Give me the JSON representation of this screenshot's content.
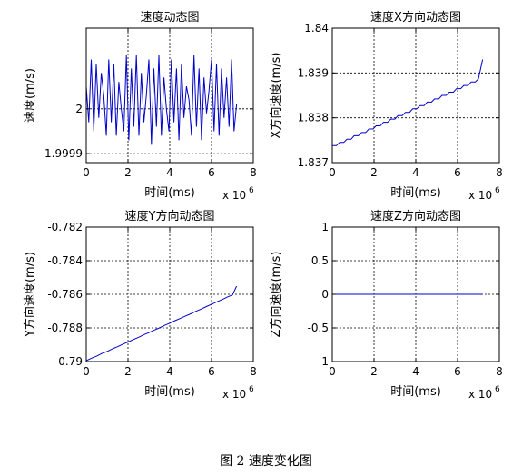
{
  "caption": "图 2  速度变化图",
  "chart_data": [
    {
      "id": "speed",
      "type": "line",
      "title": "速度动态图",
      "xlabel": "时间(ms)",
      "ylabel": "速度(m/s)",
      "x_exponent_label": "x 10",
      "x_exponent_power": "6",
      "xlim": [
        0,
        8
      ],
      "ylim": [
        1.99988,
        2.00018
      ],
      "xticks": [
        0,
        2,
        4,
        6,
        8
      ],
      "xtick_labels": [
        "0",
        "2",
        "4",
        "6",
        "8"
      ],
      "yticks": [
        1.9999,
        2.0
      ],
      "ytick_labels": [
        "1.9999",
        "2"
      ],
      "grid": true,
      "series": [
        {
          "color": "#0000cc",
          "x": [
            0.0,
            0.12,
            0.24,
            0.36,
            0.48,
            0.6,
            0.72,
            0.84,
            0.96,
            1.08,
            1.2,
            1.32,
            1.44,
            1.56,
            1.68,
            1.8,
            1.92,
            2.04,
            2.16,
            2.28,
            2.4,
            2.52,
            2.64,
            2.76,
            2.88,
            3.0,
            3.12,
            3.24,
            3.36,
            3.48,
            3.6,
            3.72,
            3.84,
            3.96,
            4.08,
            4.2,
            4.32,
            4.44,
            4.56,
            4.68,
            4.8,
            4.92,
            5.04,
            5.16,
            5.28,
            5.4,
            5.52,
            5.64,
            5.76,
            5.88,
            6.0,
            6.12,
            6.24,
            6.36,
            6.48,
            6.6,
            6.72,
            6.84,
            6.96,
            7.08,
            7.2
          ],
          "y": [
            2.00005,
            1.99997,
            2.00011,
            1.99995,
            2.0001,
            1.99998,
            2.00008,
            2.00003,
            1.99994,
            2.00011,
            1.99997,
            2.0001,
            1.99994,
            2.00006,
            2.0,
            1.99995,
            2.00012,
            1.99993,
            2.00009,
            1.99996,
            2.00012,
            1.99994,
            2.00008,
            1.99997,
            2.00003,
            2.00011,
            1.99992,
            2.00009,
            1.99996,
            2.00012,
            1.99994,
            2.00007,
            2.0,
            1.99995,
            2.00011,
            1.99997,
            2.00009,
            1.99993,
            2.0001,
            1.99998,
            2.00005,
            2.00002,
            1.99994,
            2.00012,
            1.99996,
            2.00009,
            1.99993,
            2.00007,
            1.99999,
            2.00004,
            2.00011,
            1.99995,
            2.0001,
            1.99994,
            2.00009,
            1.99998,
            2.00007,
            1.99996,
            2.00011,
            1.99995,
            2.00001
          ]
        }
      ]
    },
    {
      "id": "speed-x",
      "type": "line",
      "title": "速度X方向动态图",
      "xlabel": "时间(ms)",
      "ylabel": "X方向速度(m/s)",
      "x_exponent_label": "x 10",
      "x_exponent_power": "6",
      "xlim": [
        0,
        8
      ],
      "ylim": [
        1.837,
        1.84
      ],
      "xticks": [
        0,
        2,
        4,
        6,
        8
      ],
      "xtick_labels": [
        "0",
        "2",
        "4",
        "6",
        "8"
      ],
      "yticks": [
        1.837,
        1.838,
        1.839,
        1.84
      ],
      "ytick_labels": [
        "1.837",
        "1.838",
        "1.839",
        "1.84"
      ],
      "grid": true,
      "series": [
        {
          "color": "#0000cc",
          "x": [
            0.0,
            0.2,
            0.35,
            0.55,
            0.7,
            0.9,
            1.05,
            1.25,
            1.4,
            1.6,
            1.75,
            1.95,
            2.1,
            2.3,
            2.45,
            2.65,
            2.8,
            3.0,
            3.15,
            3.35,
            3.5,
            3.7,
            3.85,
            4.05,
            4.2,
            4.4,
            4.55,
            4.75,
            4.9,
            5.1,
            5.25,
            5.45,
            5.6,
            5.8,
            5.95,
            6.15,
            6.3,
            6.5,
            6.65,
            6.85,
            7.0,
            7.2
          ],
          "y": [
            1.83738,
            1.83738,
            1.83745,
            1.83745,
            1.83752,
            1.83752,
            1.8376,
            1.8376,
            1.83767,
            1.83767,
            1.83775,
            1.83775,
            1.83782,
            1.83782,
            1.8379,
            1.8379,
            1.83797,
            1.83797,
            1.83805,
            1.83805,
            1.83812,
            1.83812,
            1.8382,
            1.8382,
            1.83827,
            1.83827,
            1.83835,
            1.83835,
            1.83842,
            1.83842,
            1.8385,
            1.8385,
            1.83857,
            1.83857,
            1.83865,
            1.83865,
            1.83872,
            1.83872,
            1.8388,
            1.8388,
            1.83887,
            1.8393
          ]
        }
      ]
    },
    {
      "id": "speed-y",
      "type": "line",
      "title": "速度Y方向动态图",
      "xlabel": "时间(ms)",
      "ylabel": "Y方向速度(m/s)",
      "x_exponent_label": "x 10",
      "x_exponent_power": "6",
      "xlim": [
        0,
        8
      ],
      "ylim": [
        -0.79,
        -0.782
      ],
      "xticks": [
        0,
        2,
        4,
        6,
        8
      ],
      "xtick_labels": [
        "0",
        "2",
        "4",
        "6",
        "8"
      ],
      "yticks": [
        -0.79,
        -0.788,
        -0.786,
        -0.784,
        -0.782
      ],
      "ytick_labels": [
        "-0.79",
        "-0.788",
        "-0.786",
        "-0.784",
        "-0.782"
      ],
      "grid": true,
      "series": [
        {
          "color": "#0000cc",
          "x": [
            0.0,
            0.25,
            0.5,
            0.75,
            1.0,
            1.25,
            1.5,
            1.75,
            2.0,
            2.25,
            2.5,
            2.75,
            3.0,
            3.25,
            3.5,
            3.75,
            4.0,
            4.25,
            4.5,
            4.75,
            5.0,
            5.25,
            5.5,
            5.75,
            6.0,
            6.25,
            6.5,
            6.75,
            7.0,
            7.2
          ],
          "y": [
            -0.78995,
            -0.7898,
            -0.78968,
            -0.78952,
            -0.7894,
            -0.78925,
            -0.78912,
            -0.78897,
            -0.78884,
            -0.78869,
            -0.78856,
            -0.78841,
            -0.78828,
            -0.78813,
            -0.788,
            -0.78785,
            -0.78772,
            -0.78757,
            -0.78744,
            -0.78729,
            -0.78716,
            -0.78701,
            -0.78688,
            -0.78673,
            -0.7866,
            -0.78645,
            -0.78632,
            -0.78617,
            -0.78604,
            -0.78552
          ]
        }
      ]
    },
    {
      "id": "speed-z",
      "type": "line",
      "title": "速度Z方向动态图",
      "xlabel": "时间(ms)",
      "ylabel": "Z方向速度(m/s)",
      "x_exponent_label": "x 10",
      "x_exponent_power": "6",
      "xlim": [
        0,
        8
      ],
      "ylim": [
        -1,
        1
      ],
      "xticks": [
        0,
        2,
        4,
        6,
        8
      ],
      "xtick_labels": [
        "0",
        "2",
        "4",
        "6",
        "8"
      ],
      "yticks": [
        -1,
        -0.5,
        0,
        0.5,
        1
      ],
      "ytick_labels": [
        "-1",
        "-0.5",
        "0",
        "0.5",
        "1"
      ],
      "grid": true,
      "series": [
        {
          "color": "#0000cc",
          "x": [
            0.0,
            7.2
          ],
          "y": [
            0,
            0
          ]
        }
      ]
    }
  ]
}
